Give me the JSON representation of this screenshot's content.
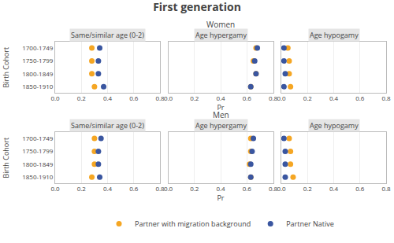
{
  "chart_data": {
    "type": "scatter",
    "title": "First generation",
    "xlabel": "Pr",
    "ylabel": "Birth Cohort",
    "rows": [
      "Women",
      "Men"
    ],
    "columns": [
      "Same/similar age (0-2)",
      "Age hypergamy",
      "Age hypogamy"
    ],
    "categories": [
      "1700-1749",
      "1750-1799",
      "1800-1849",
      "1850-1910"
    ],
    "xlim": [
      0.0,
      0.8
    ],
    "xticks": [
      {
        "value": 0.0,
        "label": "0.0"
      },
      0.2,
      0.4,
      0.6,
      0.8
    ],
    "grid": true,
    "legend": "bottom",
    "marker": "circle",
    "panels": [
      {
        "row": "Women",
        "column": "Same/similar age (0-2)",
        "series": [
          {
            "name": "Partner with migration background",
            "color": "#F5A623",
            "values": [
              0.28,
              0.28,
              0.28,
              0.3
            ]
          },
          {
            "name": "Partner Native",
            "color": "#3A56A0",
            "values": [
              0.34,
              0.33,
              0.33,
              0.37
            ]
          }
        ]
      },
      {
        "row": "Women",
        "column": "Age hypergamy",
        "series": [
          {
            "name": "Partner with migration background",
            "color": "#F5A623",
            "values": [
              0.67,
              0.65,
              0.67,
              0.63
            ]
          },
          {
            "name": "Partner Native",
            "color": "#3A56A0",
            "values": [
              0.68,
              0.66,
              0.67,
              0.63
            ]
          }
        ]
      },
      {
        "row": "Women",
        "column": "Age hypogamy",
        "series": [
          {
            "name": "Partner with migration background",
            "color": "#F5A623",
            "values": [
              0.05,
              0.06,
              0.06,
              0.07
            ]
          },
          {
            "name": "Partner Native",
            "color": "#3A56A0",
            "values": [
              0.02,
              0.02,
              0.03,
              0.02
            ]
          }
        ]
      },
      {
        "row": "Men",
        "column": "Same/similar age (0-2)",
        "series": [
          {
            "name": "Partner with migration background",
            "color": "#F5A623",
            "values": [
              0.3,
              0.3,
              0.3,
              0.28
            ]
          },
          {
            "name": "Partner Native",
            "color": "#3A56A0",
            "values": [
              0.35,
              0.33,
              0.33,
              0.34
            ]
          }
        ]
      },
      {
        "row": "Men",
        "column": "Age hypergamy",
        "series": [
          {
            "name": "Partner with migration background",
            "color": "#F5A623",
            "values": [
              0.63,
              0.63,
              0.62,
              0.63
            ]
          },
          {
            "name": "Partner Native",
            "color": "#3A56A0",
            "values": [
              0.65,
              0.64,
              0.63,
              0.63
            ]
          }
        ]
      },
      {
        "row": "Men",
        "column": "Age hypogamy",
        "series": [
          {
            "name": "Partner with migration background",
            "color": "#F5A623",
            "values": [
              0.06,
              0.07,
              0.07,
              0.09
            ]
          },
          {
            "name": "Partner Native",
            "color": "#3A56A0",
            "values": [
              0.02,
              0.03,
              0.03,
              0.03
            ]
          }
        ]
      }
    ]
  }
}
